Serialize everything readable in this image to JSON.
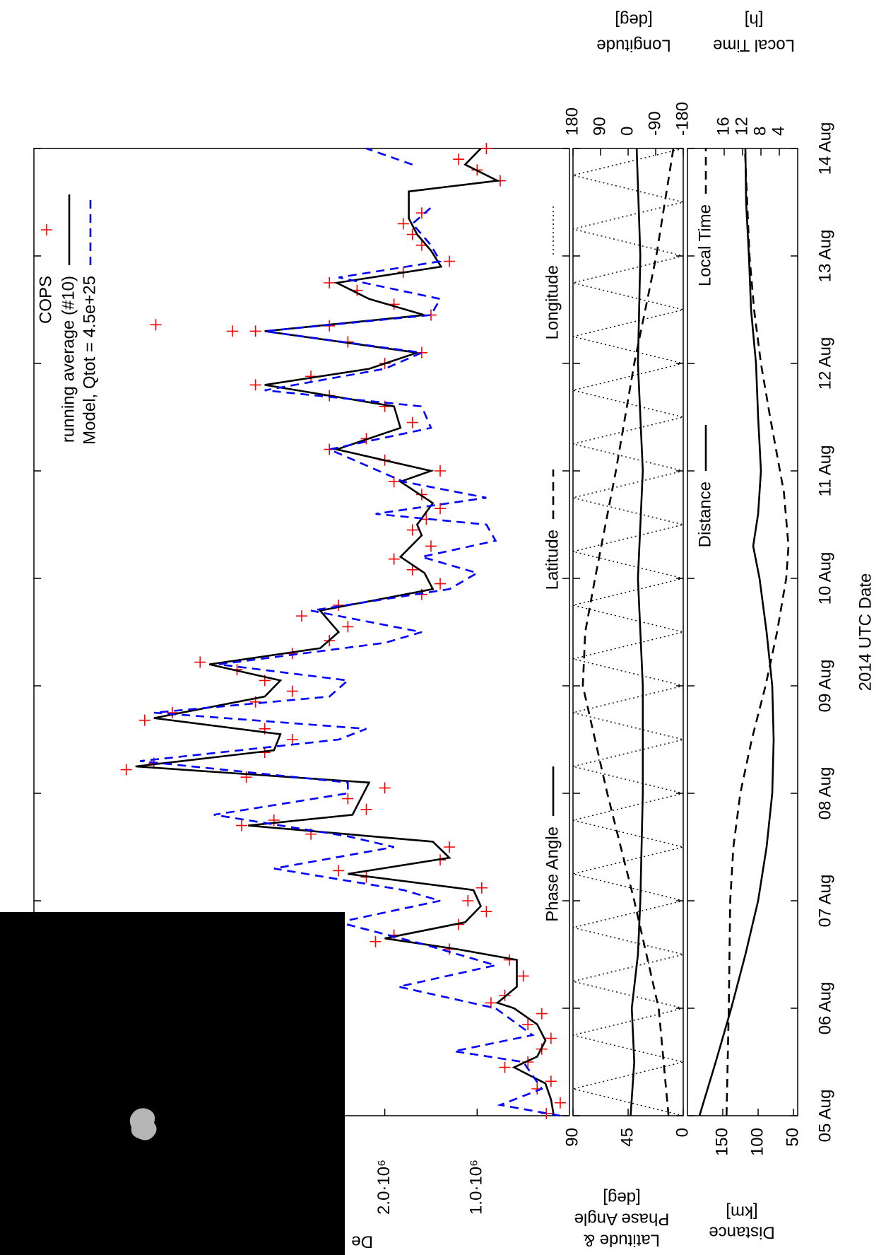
{
  "chart_data": [
    {
      "type": "line",
      "y_label": "De",
      "xlim": [
        5,
        14
      ],
      "ylim": [
        0,
        5800000
      ],
      "yticks": [
        {
          "value": 1000000,
          "label": "1.0·10⁶"
        },
        {
          "value": 2000000,
          "label": "2.0·10⁶"
        }
      ],
      "legend": "upper right",
      "series": [
        {
          "name": "COPS",
          "type": "scatter",
          "color": "#ff0000",
          "x": [
            5.02,
            5.12,
            5.25,
            5.32,
            5.45,
            5.5,
            5.62,
            5.72,
            5.85,
            5.95,
            6.05,
            6.12,
            6.3,
            6.45,
            6.55,
            6.62,
            6.68,
            6.78,
            6.9,
            7.0,
            7.12,
            7.22,
            7.28,
            7.38,
            7.5,
            7.62,
            7.7,
            7.75,
            7.85,
            7.95,
            8.05,
            8.15,
            8.22,
            8.28,
            8.38,
            8.5,
            8.6,
            8.68,
            8.75,
            8.85,
            8.95,
            9.05,
            9.15,
            9.22,
            9.3,
            9.42,
            9.55,
            9.65,
            9.75,
            9.85,
            9.95,
            10.08,
            10.18,
            10.3,
            10.45,
            10.55,
            10.65,
            10.78,
            10.9,
            11.0,
            11.1,
            11.2,
            11.3,
            11.45,
            11.6,
            11.7,
            11.8,
            11.88,
            12.0,
            12.1,
            12.2,
            12.3,
            12.35,
            12.45,
            12.55,
            12.68,
            12.75,
            12.85,
            12.95,
            13.1,
            13.2,
            13.3,
            13.4,
            13.7,
            13.8,
            13.9,
            14.0,
            12.36,
            12.3
          ],
          "values": [
            250000,
            100000,
            350000,
            200000,
            700000,
            450000,
            300000,
            200000,
            450000,
            300000,
            850000,
            700000,
            500000,
            650000,
            1300000,
            2100000,
            1900000,
            1200000,
            900000,
            1100000,
            950000,
            2200000,
            2500000,
            1400000,
            1300000,
            2800000,
            3550000,
            3200000,
            2200000,
            2400000,
            2000000,
            3500000,
            4800000,
            4500000,
            3300000,
            3000000,
            3300000,
            4600000,
            4300000,
            3400000,
            3000000,
            3300000,
            3600000,
            4000000,
            3000000,
            2600000,
            2400000,
            2900000,
            2500000,
            1600000,
            1400000,
            1700000,
            1900000,
            1500000,
            1700000,
            1550000,
            1400000,
            1600000,
            1900000,
            1400000,
            2000000,
            2600000,
            2200000,
            1700000,
            2000000,
            2600000,
            3400000,
            2800000,
            2000000,
            1600000,
            2400000,
            3400000,
            2600000,
            1500000,
            1900000,
            2300000,
            2600000,
            1800000,
            1300000,
            1600000,
            1700000,
            1800000,
            1600000,
            750000,
            1000000,
            1200000,
            900000,
            4480000,
            3650000
          ]
        },
        {
          "name": "running average (#10)",
          "type": "line",
          "style": "solid",
          "color": "#000000",
          "x": [
            5,
            5.15,
            5.3,
            5.45,
            5.55,
            5.7,
            5.85,
            6,
            6.05,
            6.2,
            6.45,
            6.55,
            6.65,
            6.8,
            6.95,
            7.1,
            7.25,
            7.4,
            7.55,
            7.7,
            7.8,
            7.95,
            8.1,
            8.25,
            8.4,
            8.55,
            8.7,
            8.9,
            9.05,
            9.2,
            9.35,
            9.5,
            9.7,
            9.9,
            10.05,
            10.2,
            10.4,
            10.5,
            10.7,
            10.9,
            11,
            11.2,
            11.4,
            11.6,
            11.8,
            11.95,
            12.1,
            12.3,
            12.45,
            12.6,
            12.75,
            12.9,
            13.05,
            13.2,
            13.35,
            13.6,
            13.7,
            13.85,
            14
          ],
          "values": [
            170000,
            200000,
            260000,
            600000,
            350000,
            260000,
            350000,
            600000,
            780000,
            570000,
            570000,
            1220000,
            2000000,
            1130000,
            960000,
            1040000,
            2400000,
            1300000,
            1480000,
            3480000,
            2350000,
            2260000,
            2170000,
            4700000,
            3200000,
            3130000,
            4500000,
            3300000,
            3130000,
            3900000,
            2700000,
            2500000,
            2700000,
            1480000,
            1570000,
            1830000,
            1600000,
            1650000,
            1480000,
            1830000,
            1500000,
            2520000,
            1830000,
            1900000,
            3300000,
            2170000,
            1650000,
            3300000,
            1570000,
            2170000,
            2520000,
            1390000,
            1500000,
            1650000,
            1740000,
            1740000,
            780000,
            1130000,
            960000
          ]
        },
        {
          "name": "Model, Qtot = 4.5e+25",
          "type": "line",
          "style": "dashed",
          "color": "#0000ff",
          "x": [
            5,
            5.1,
            5.25,
            5.5,
            5.6,
            5.75,
            6,
            6.2,
            6.4,
            6.6,
            6.8,
            7,
            7.1,
            7.3,
            7.5,
            7.6,
            7.8,
            8,
            8.1,
            8.3,
            8.5,
            8.6,
            8.75,
            8.9,
            9.05,
            9.2,
            9.4,
            9.5,
            9.7,
            9.9,
            10.05,
            10.2,
            10.35,
            10.5,
            10.6,
            10.75,
            10.9,
            11.2,
            11.4,
            11.6,
            11.75,
            11.95,
            12.1,
            12.3,
            12.45,
            12.6,
            12.8,
            12.95,
            13.1,
            13.3,
            13.45,
            13.6,
            13.85,
            14
          ],
          "values": [
            100000,
            750000,
            300000,
            500000,
            1250000,
            400000,
            800000,
            1850000,
            800000,
            1600000,
            2500000,
            1400000,
            1800000,
            3200000,
            1900000,
            2400000,
            3850000,
            2400000,
            2400000,
            4650000,
            2500000,
            2200000,
            4500000,
            2600000,
            2400000,
            3800000,
            2000000,
            1600000,
            2800000,
            1300000,
            1000000,
            1600000,
            800000,
            900000,
            2100000,
            900000,
            1800000,
            2600000,
            1500000,
            1600000,
            3300000,
            2000000,
            1600000,
            3300000,
            1500000,
            1400000,
            2500000,
            1400000,
            1500000,
            1700000,
            1500000,
            null,
            1700000,
            2200000
          ]
        }
      ]
    },
    {
      "type": "line",
      "y_label": [
        "Latitude &",
        "Phase Angle",
        "[deg]"
      ],
      "y2_label": [
        "Longitude",
        "[deg]"
      ],
      "xlim": [
        5,
        14
      ],
      "ylim": [
        0,
        90
      ],
      "yticks": [
        0,
        45,
        90
      ],
      "y2lim": [
        -180,
        180
      ],
      "y2ticks": [
        -180,
        -90,
        0,
        90,
        180
      ],
      "series": [
        {
          "name": "Phase Angle",
          "type": "line",
          "style": "solid",
          "color": "#000000",
          "x": [
            5,
            5.5,
            6,
            6.5,
            7,
            8,
            9,
            10,
            11,
            12,
            13,
            14
          ],
          "values": [
            43,
            40,
            42,
            37,
            35,
            33,
            33,
            37,
            33,
            37,
            35,
            38
          ]
        },
        {
          "name": "Latitude",
          "type": "line",
          "style": "dashed",
          "color": "#000000",
          "x": [
            5,
            6,
            7,
            8,
            9,
            9.5,
            10,
            11,
            12,
            13,
            14
          ],
          "values": [
            12,
            20,
            40,
            62,
            82,
            80,
            72,
            55,
            40,
            22,
            8
          ]
        },
        {
          "name": "Longitude",
          "type": "line",
          "style": "dotted",
          "color": "#000000",
          "axis": "y2",
          "x": [
            5,
            5.25,
            5.5,
            5.75,
            6,
            6.25,
            6.5,
            6.75,
            7,
            7.25,
            7.5,
            7.75,
            8,
            8.25,
            8.5,
            8.75,
            9,
            9.25,
            9.5,
            9.75,
            10,
            10.25,
            10.5,
            10.75,
            11,
            11.25,
            11.5,
            11.75,
            12,
            12.25,
            12.5,
            12.75,
            13,
            13.25,
            13.5,
            13.75,
            14
          ],
          "values": [
            -180,
            180,
            -180,
            180,
            -180,
            180,
            -180,
            180,
            -180,
            180,
            -180,
            180,
            -180,
            180,
            -180,
            180,
            -180,
            180,
            -180,
            180,
            -180,
            180,
            -180,
            180,
            -180,
            180,
            -180,
            180,
            -180,
            180,
            -180,
            180,
            -180,
            180,
            -180,
            180,
            -180
          ]
        }
      ]
    },
    {
      "type": "line",
      "x_label": "2014 UTC Date",
      "y_label": [
        "Distance",
        "[km]"
      ],
      "y2_label": [
        "Local Time",
        "[h]"
      ],
      "xlim": [
        5,
        14
      ],
      "xticks": [
        {
          "value": 5,
          "label": "05 Aug"
        },
        {
          "value": 6,
          "label": "06 Aug"
        },
        {
          "value": 7,
          "label": "07 Aug"
        },
        {
          "value": 8,
          "label": "08 Aug"
        },
        {
          "value": 9,
          "label": "09 Aug"
        },
        {
          "value": 10,
          "label": "10 Aug"
        },
        {
          "value": 11,
          "label": "11 Aug"
        },
        {
          "value": 12,
          "label": "12 Aug"
        },
        {
          "value": 13,
          "label": "13 Aug"
        },
        {
          "value": 14,
          "label": "14 Aug"
        }
      ],
      "ylim": [
        44,
        200
      ],
      "yticks": [
        50,
        100,
        150
      ],
      "y2lim": [
        0,
        24
      ],
      "y2ticks": [
        4,
        8,
        12,
        16
      ],
      "series": [
        {
          "name": "Distance",
          "type": "line",
          "style": "solid",
          "color": "#000000",
          "x": [
            5,
            5.5,
            6,
            6.5,
            7,
            7.5,
            8,
            8.5,
            9,
            9.5,
            10,
            10.3,
            10.6,
            11,
            11.5,
            12,
            12.5,
            13,
            13.5,
            14
          ],
          "values": [
            183,
            160,
            138,
            118,
            100,
            88,
            80,
            78,
            80,
            88,
            98,
            107,
            100,
            96,
            100,
            103,
            110,
            113,
            117,
            118
          ]
        },
        {
          "name": "Local Time",
          "type": "line",
          "style": "dashed",
          "color": "#000000",
          "axis": "y2",
          "x": [
            5,
            6,
            7,
            7.5,
            8,
            8.5,
            9,
            9.5,
            10,
            10.3,
            10.8,
            11.5,
            12,
            12.5,
            13,
            13.5,
            14
          ],
          "values": [
            15.5,
            15,
            14.7,
            14,
            12.5,
            10,
            7,
            4.5,
            2.5,
            2,
            3,
            6,
            8,
            9.5,
            10.5,
            11,
            11.5
          ]
        }
      ]
    }
  ]
}
